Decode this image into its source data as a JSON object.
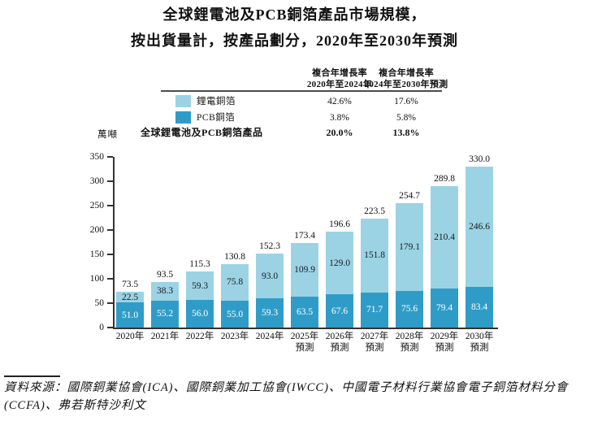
{
  "title": {
    "line1": "全球鋰電池及PCB銅箔產品市場規模，",
    "line2": "按出貨量計，按產品劃分，2020年至2030年預測"
  },
  "cagr_table": {
    "col_headers": [
      {
        "line1": "複合年增長率",
        "line2": "2020年至2024年"
      },
      {
        "line1": "複合年增長率",
        "line2": "2024年至2030年預測"
      }
    ],
    "rows": [
      {
        "label": "鋰電銅箔",
        "swatch": "#9bd3e5",
        "values": [
          "42.6%",
          "17.6%"
        ]
      },
      {
        "label": "PCB銅箔",
        "swatch": "#2f9cc8",
        "values": [
          "3.8%",
          "5.8%"
        ]
      },
      {
        "label": "全球鋰電池及PCB銅箔產品",
        "values": [
          "20.0%",
          "13.8%"
        ]
      }
    ]
  },
  "chart_data": {
    "type": "bar",
    "stacked": true,
    "title": "全球鋰電池及PCB銅箔產品市場規模，按出貨量計，按產品劃分，2020年至2030年預測",
    "ylabel": "萬噸",
    "ylim": [
      0,
      350
    ],
    "ytick_step": 50,
    "grid": false,
    "legend_position": "top-table",
    "categories": [
      "2020年",
      "2021年",
      "2022年",
      "2023年",
      "2024年",
      "2025年",
      "2026年",
      "2027年",
      "2028年",
      "2029年",
      "2030年"
    ],
    "forecast_suffix": "預測",
    "forecast_from_index": 5,
    "series": [
      {
        "name": "PCB銅箔",
        "color": "#2f9cc8",
        "label_color": "#ffffff",
        "values": [
          51.0,
          55.2,
          56.0,
          55.0,
          59.3,
          63.5,
          67.6,
          71.7,
          75.6,
          79.4,
          83.4
        ]
      },
      {
        "name": "鋰電銅箔",
        "color": "#9bd3e5",
        "label_color": "#1a1a1a",
        "values": [
          22.5,
          38.3,
          59.3,
          75.8,
          93.0,
          109.9,
          129.0,
          151.8,
          179.1,
          210.4,
          246.6
        ]
      }
    ],
    "totals": [
      73.5,
      93.5,
      115.3,
      130.8,
      152.3,
      173.4,
      196.6,
      223.5,
      254.7,
      289.8,
      330.0
    ]
  },
  "source": {
    "line1": "資料來源：國際銅業協會(ICA)、國際銅業加工協會(IWCC)、中國電子材料行業協會電子銅箔材料分會",
    "line2": "(CCFA)、弗若斯特沙利文"
  }
}
